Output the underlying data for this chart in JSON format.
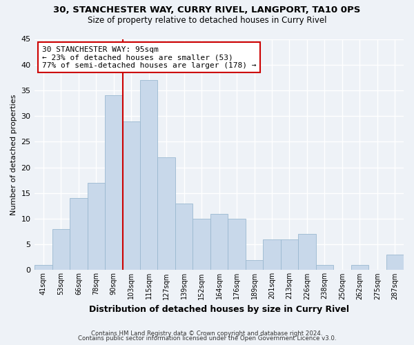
{
  "title1": "30, STANCHESTER WAY, CURRY RIVEL, LANGPORT, TA10 0PS",
  "title2": "Size of property relative to detached houses in Curry Rivel",
  "xlabel": "Distribution of detached houses by size in Curry Rivel",
  "ylabel": "Number of detached properties",
  "footer1": "Contains HM Land Registry data © Crown copyright and database right 2024.",
  "footer2": "Contains public sector information licensed under the Open Government Licence v3.0.",
  "annotation_line1": "30 STANCHESTER WAY: 95sqm",
  "annotation_line2": "← 23% of detached houses are smaller (53)",
  "annotation_line3": "77% of semi-detached houses are larger (178) →",
  "bar_labels": [
    "41sqm",
    "53sqm",
    "66sqm",
    "78sqm",
    "90sqm",
    "103sqm",
    "115sqm",
    "127sqm",
    "139sqm",
    "152sqm",
    "164sqm",
    "176sqm",
    "189sqm",
    "201sqm",
    "213sqm",
    "226sqm",
    "238sqm",
    "250sqm",
    "262sqm",
    "275sqm",
    "287sqm"
  ],
  "bar_values": [
    1,
    8,
    14,
    17,
    34,
    29,
    37,
    22,
    13,
    10,
    11,
    10,
    2,
    6,
    6,
    7,
    1,
    0,
    1,
    0,
    3
  ],
  "bar_color": "#c8d8ea",
  "bar_edge_color": "#9ab8d0",
  "vline_x_index": 4.5,
  "vline_color": "#cc0000",
  "ylim": [
    0,
    45
  ],
  "yticks": [
    0,
    5,
    10,
    15,
    20,
    25,
    30,
    35,
    40,
    45
  ],
  "bg_color": "#eef2f7",
  "annotation_box_edge": "#cc0000",
  "annotation_box_face": "#ffffff"
}
